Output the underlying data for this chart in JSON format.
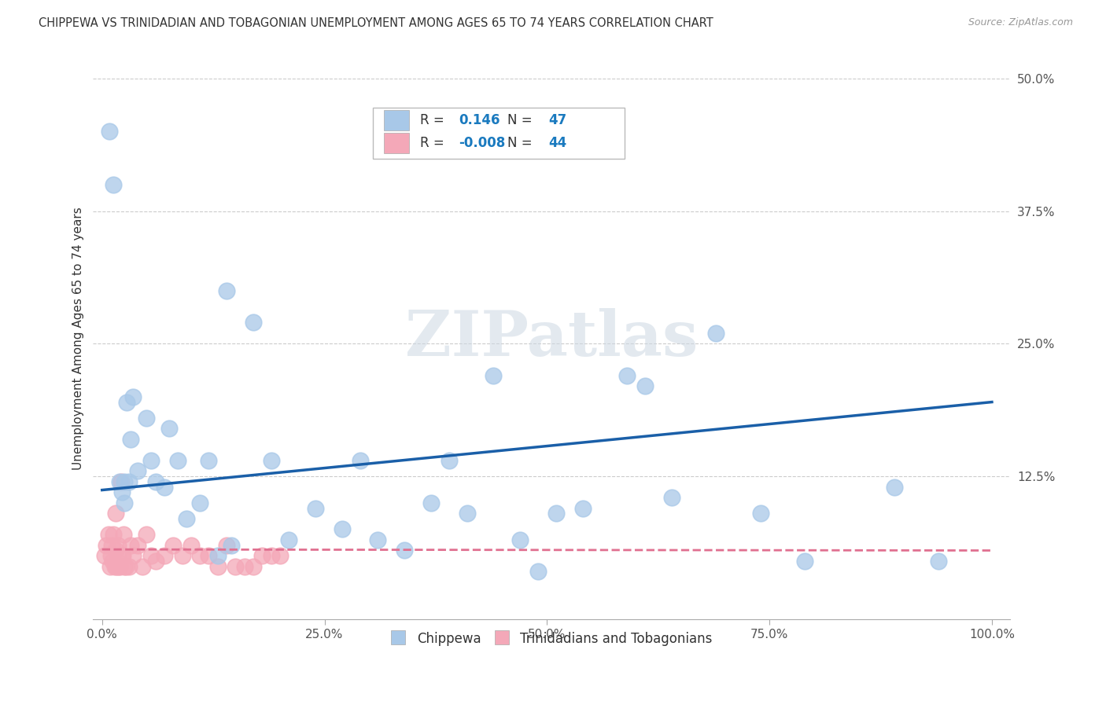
{
  "title": "CHIPPEWA VS TRINIDADIAN AND TOBAGONIAN UNEMPLOYMENT AMONG AGES 65 TO 74 YEARS CORRELATION CHART",
  "source": "Source: ZipAtlas.com",
  "ylabel": "Unemployment Among Ages 65 to 74 years",
  "xlim": [
    -0.01,
    1.02
  ],
  "ylim": [
    -0.01,
    0.52
  ],
  "xticks": [
    0.0,
    0.25,
    0.5,
    0.75,
    1.0
  ],
  "xticklabels": [
    "0.0%",
    "25.0%",
    "50.0%",
    "75.0%",
    "100.0%"
  ],
  "yticks": [
    0.0,
    0.125,
    0.25,
    0.375,
    0.5
  ],
  "yticklabels": [
    "",
    "12.5%",
    "25.0%",
    "37.5%",
    "50.0%"
  ],
  "chippewa_R": 0.146,
  "chippewa_N": 47,
  "trini_R": -0.008,
  "trini_N": 44,
  "chippewa_color": "#a8c8e8",
  "trini_color": "#f4a8b8",
  "trendline_blue": "#1a5fa8",
  "trendline_pink": "#e07090",
  "watermark": "ZIPatlas",
  "legend_R_color": "#1a7abf",
  "chippewa_x": [
    0.008,
    0.013,
    0.02,
    0.022,
    0.025,
    0.025,
    0.028,
    0.03,
    0.032,
    0.035,
    0.04,
    0.05,
    0.055,
    0.06,
    0.07,
    0.075,
    0.085,
    0.095,
    0.11,
    0.12,
    0.13,
    0.14,
    0.145,
    0.17,
    0.19,
    0.21,
    0.24,
    0.27,
    0.29,
    0.31,
    0.34,
    0.37,
    0.39,
    0.41,
    0.44,
    0.47,
    0.49,
    0.51,
    0.54,
    0.59,
    0.61,
    0.64,
    0.69,
    0.74,
    0.79,
    0.89,
    0.94
  ],
  "chippewa_y": [
    0.45,
    0.4,
    0.12,
    0.11,
    0.12,
    0.1,
    0.195,
    0.12,
    0.16,
    0.2,
    0.13,
    0.18,
    0.14,
    0.12,
    0.115,
    0.17,
    0.14,
    0.085,
    0.1,
    0.14,
    0.05,
    0.3,
    0.06,
    0.27,
    0.14,
    0.065,
    0.095,
    0.075,
    0.14,
    0.065,
    0.055,
    0.1,
    0.14,
    0.09,
    0.22,
    0.065,
    0.035,
    0.09,
    0.095,
    0.22,
    0.21,
    0.105,
    0.26,
    0.09,
    0.045,
    0.115,
    0.045
  ],
  "trini_x": [
    0.003,
    0.005,
    0.007,
    0.009,
    0.01,
    0.011,
    0.012,
    0.013,
    0.014,
    0.015,
    0.015,
    0.016,
    0.017,
    0.018,
    0.019,
    0.02,
    0.021,
    0.022,
    0.023,
    0.024,
    0.025,
    0.027,
    0.03,
    0.032,
    0.035,
    0.04,
    0.045,
    0.05,
    0.055,
    0.06,
    0.07,
    0.08,
    0.09,
    0.1,
    0.11,
    0.12,
    0.13,
    0.14,
    0.15,
    0.16,
    0.17,
    0.18,
    0.19,
    0.2
  ],
  "trini_y": [
    0.05,
    0.06,
    0.07,
    0.04,
    0.05,
    0.06,
    0.045,
    0.07,
    0.04,
    0.055,
    0.09,
    0.04,
    0.045,
    0.06,
    0.04,
    0.04,
    0.12,
    0.05,
    0.05,
    0.07,
    0.04,
    0.04,
    0.04,
    0.06,
    0.05,
    0.06,
    0.04,
    0.07,
    0.05,
    0.045,
    0.05,
    0.06,
    0.05,
    0.06,
    0.05,
    0.05,
    0.04,
    0.06,
    0.04,
    0.04,
    0.04,
    0.05,
    0.05,
    0.05
  ],
  "blue_trendline_x": [
    0.0,
    1.0
  ],
  "blue_trendline_y": [
    0.112,
    0.195
  ],
  "pink_trendline_x": [
    0.0,
    1.0
  ],
  "pink_trendline_y": [
    0.056,
    0.055
  ]
}
